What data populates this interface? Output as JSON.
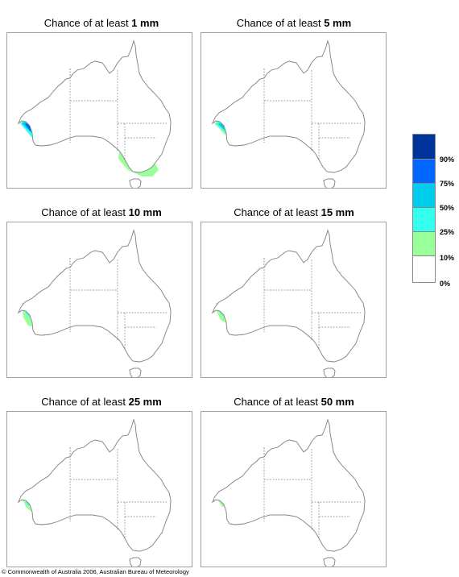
{
  "panels": [
    {
      "prefix": "Chance of at least",
      "amount": "1 mm"
    },
    {
      "prefix": "Chance of at least",
      "amount": "5 mm"
    },
    {
      "prefix": "Chance of at least",
      "amount": "10 mm"
    },
    {
      "prefix": "Chance of at least",
      "amount": "15 mm"
    },
    {
      "prefix": "Chance of at least",
      "amount": "25 mm"
    },
    {
      "prefix": "Chance of at least",
      "amount": "50 mm"
    }
  ],
  "legend": {
    "labels": [
      "90%",
      "75%",
      "50%",
      "25%",
      "10%",
      "0%"
    ],
    "colors": [
      "#003399",
      "#0066ff",
      "#00ccee",
      "#33ffee",
      "#99ff99",
      "#ffffff"
    ]
  },
  "copyright": "© Commonwealth of Australia 2006, Australian Bureau of Meteorology"
}
